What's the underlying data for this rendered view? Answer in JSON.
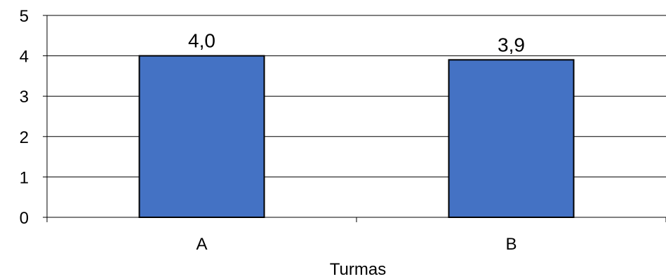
{
  "chart_data": {
    "type": "bar",
    "categories": [
      "A",
      "B"
    ],
    "values": [
      4.0,
      3.9
    ],
    "data_labels": [
      "4,0",
      "3,9"
    ],
    "title": "",
    "xlabel": "Turmas",
    "ylabel": "",
    "ylim": [
      0,
      5
    ],
    "yticks": [
      "0",
      "1",
      "2",
      "3",
      "4",
      "5"
    ],
    "grid": true,
    "legend": "none",
    "bar_color": "#4472C4",
    "bar_edge_color": "#000000"
  }
}
